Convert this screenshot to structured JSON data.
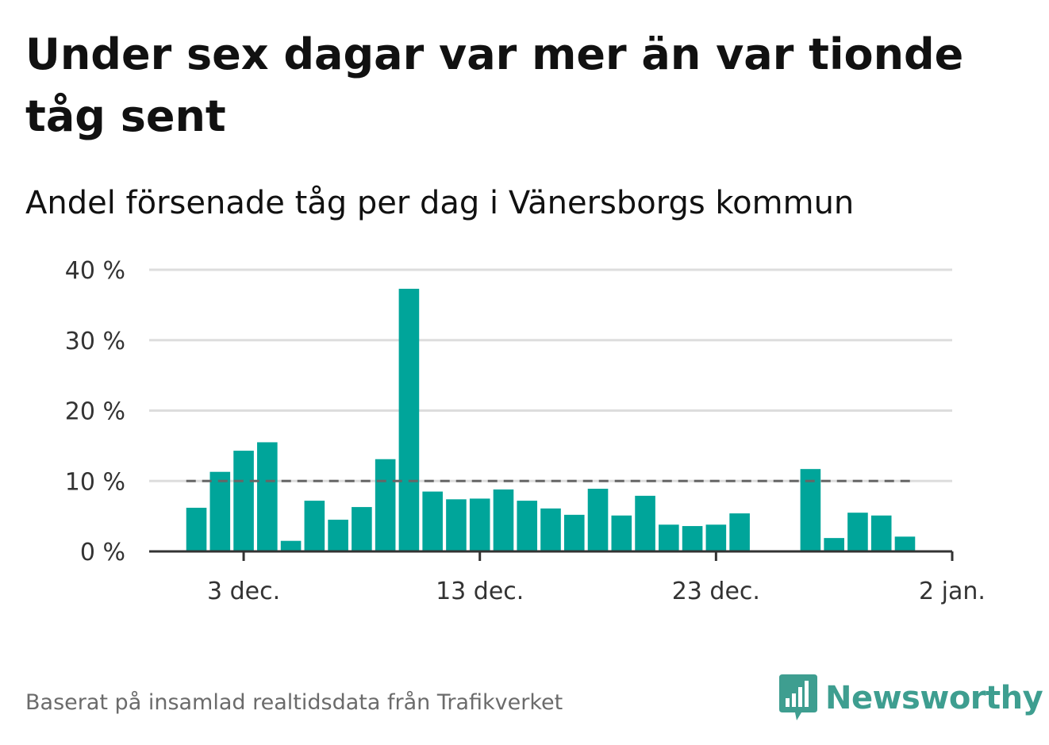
{
  "title": "Under sex dagar var mer än var tionde tåg sent",
  "subtitle": "Andel försenade tåg per dag i Vänersborgs kommun",
  "footer": "Baserat på insamlad realtidsdata från Trafikverket",
  "brand": {
    "name": "Newsworthy",
    "icon": "newsworthy-logo-icon",
    "color": "#3e9e90"
  },
  "chart_data": {
    "type": "bar",
    "x_start_day": 1,
    "x_tick_labels": [
      "3 dec.",
      "13 dec.",
      "23 dec.",
      "2 jan."
    ],
    "x_tick_days": [
      3,
      13,
      23,
      33
    ],
    "x_domain_days": [
      -1,
      33
    ],
    "y_tick_labels": [
      "0 %",
      "10 %",
      "20 %",
      "30 %",
      "40 %"
    ],
    "y_ticks": [
      0,
      10,
      20,
      30,
      40
    ],
    "ylim": [
      0,
      40
    ],
    "values": [
      6.2,
      11.3,
      14.3,
      15.5,
      1.5,
      7.2,
      4.5,
      6.3,
      13.1,
      37.3,
      8.5,
      7.4,
      7.5,
      8.8,
      7.2,
      6.1,
      5.2,
      8.9,
      5.1,
      7.9,
      3.8,
      3.6,
      3.8,
      5.4,
      0,
      0,
      11.7,
      1.9,
      5.5,
      5.1,
      2.1
    ],
    "reference_line": 10,
    "bar_color": "#00a59a",
    "reference_color": "#666666",
    "grid": true,
    "legend": "none"
  }
}
